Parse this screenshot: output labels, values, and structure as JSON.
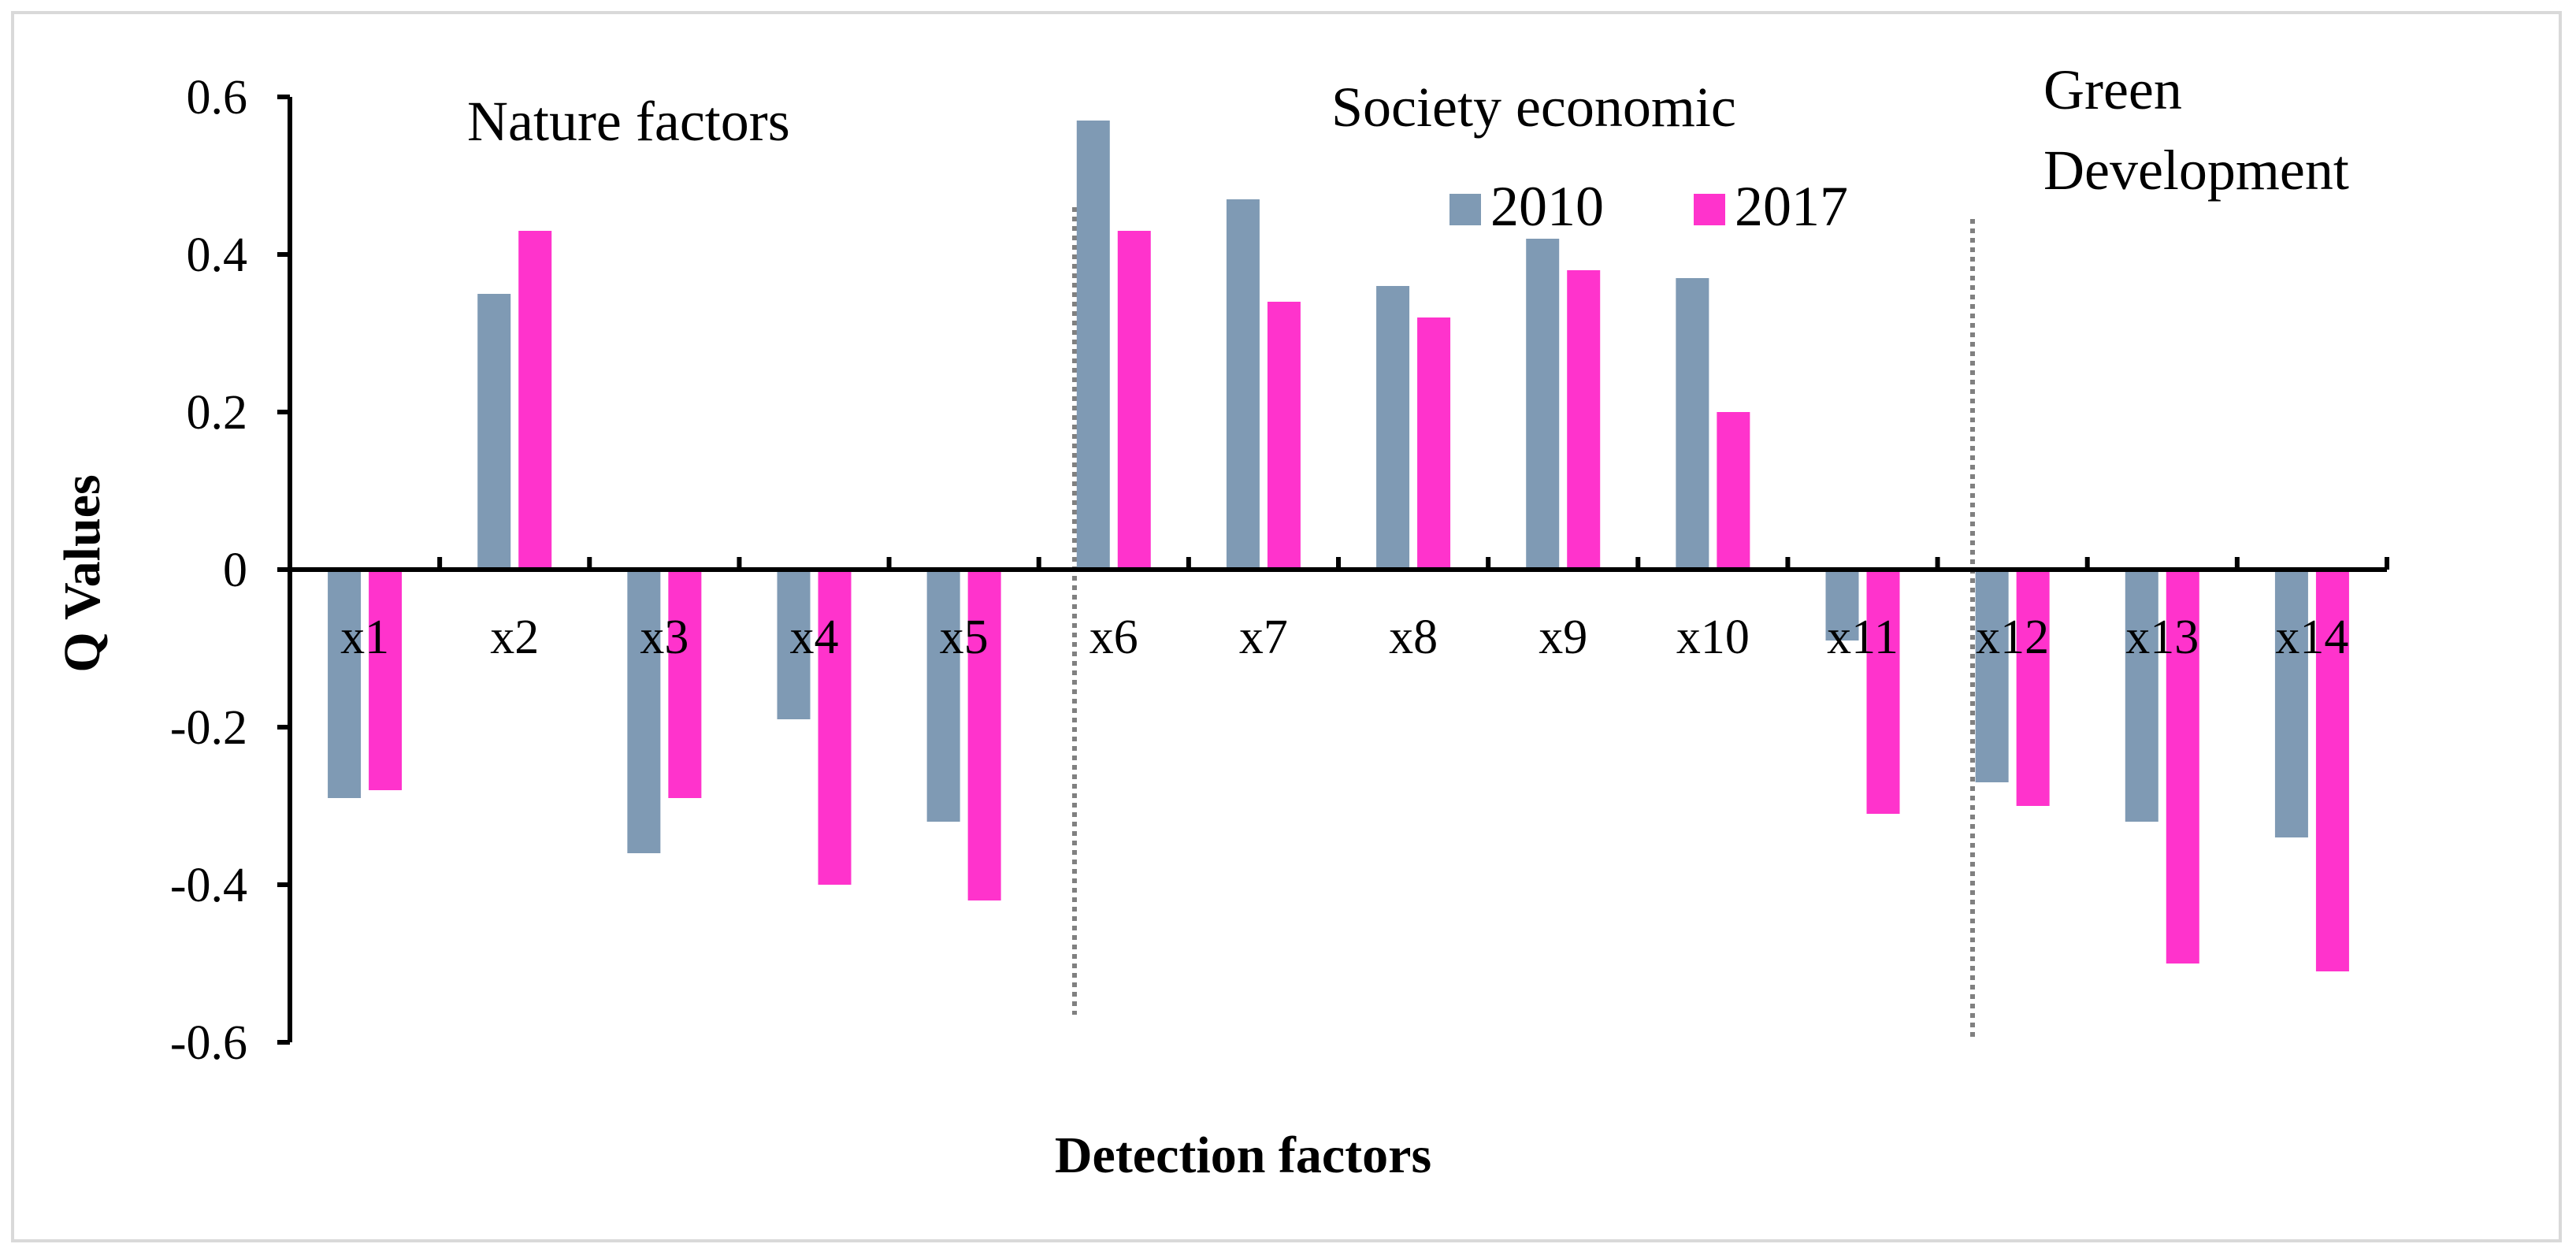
{
  "chart_data": {
    "type": "bar",
    "title": "",
    "xlabel": "Detection factors",
    "ylabel": "Q Values",
    "ylim": [
      -0.6,
      0.6
    ],
    "yticks": [
      0.6,
      0.4,
      0.2,
      0,
      -0.2,
      -0.4,
      -0.6
    ],
    "ytick_labels": [
      "0.6",
      "0.4",
      "0.2",
      "0",
      "-0.2",
      "-0.4",
      "-0.6"
    ],
    "categories": [
      "x1",
      "x2",
      "x3",
      "x4",
      "x5",
      "x6",
      "x7",
      "x8",
      "x9",
      "x10",
      "x11",
      "x12",
      "x13",
      "x14"
    ],
    "series": [
      {
        "name": "2010",
        "color": "#7f9ab4",
        "values": [
          -0.29,
          0.35,
          -0.36,
          -0.19,
          -0.32,
          0.57,
          0.47,
          0.36,
          0.42,
          0.37,
          -0.09,
          -0.27,
          -0.32,
          -0.34
        ]
      },
      {
        "name": "2017",
        "color": "#ff33cc",
        "values": [
          -0.28,
          0.43,
          -0.29,
          -0.4,
          -0.42,
          0.43,
          0.34,
          0.32,
          0.38,
          0.2,
          -0.31,
          -0.3,
          -0.5,
          -0.51
        ]
      }
    ],
    "groups": [
      {
        "label": "Nature factors"
      },
      {
        "label": "Society economic"
      },
      {
        "label_line1": "Green",
        "label_line2": "Development"
      }
    ],
    "grid": false,
    "legend_position": "top-center",
    "divider_color": "#808080"
  }
}
